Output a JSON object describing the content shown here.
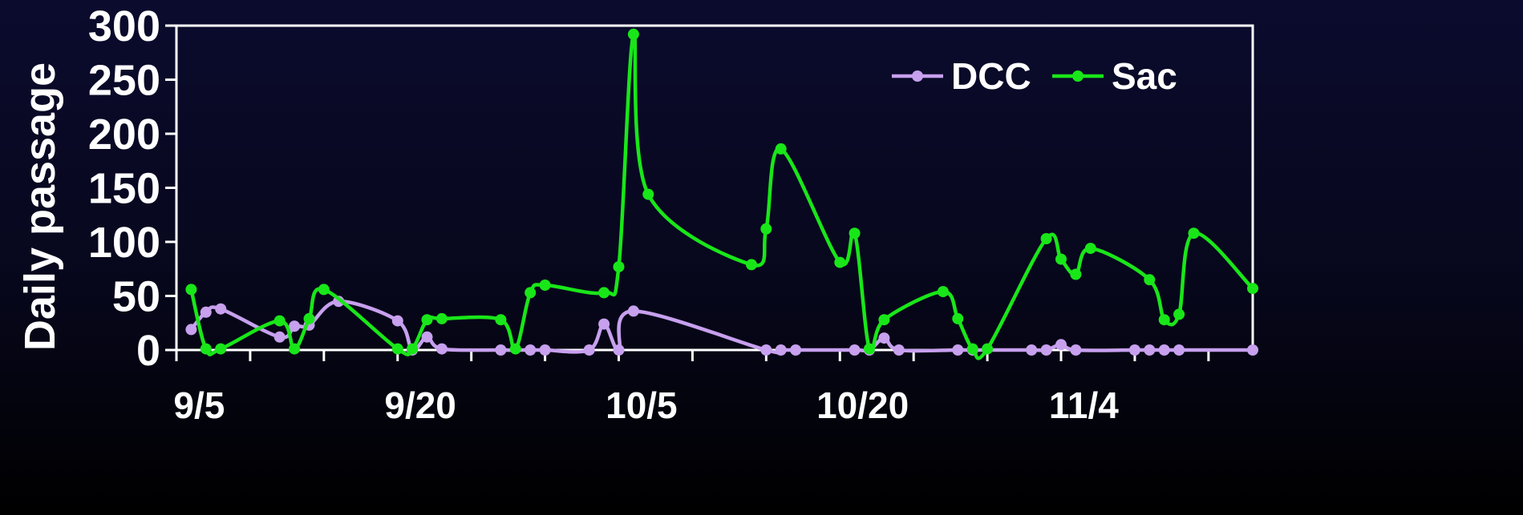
{
  "chart_data": {
    "type": "line",
    "title": "",
    "xlabel": "",
    "ylabel": "Daily passage",
    "ylim": [
      0,
      300
    ],
    "yticks": [
      0,
      50,
      100,
      150,
      200,
      250,
      300
    ],
    "xlim": [
      "9/4",
      "11/16"
    ],
    "xticks": [
      "9/5",
      "9/20",
      "10/5",
      "10/20",
      "11/4"
    ],
    "legend_position": "top-center",
    "grid": false,
    "colors": {
      "background": "#07071c",
      "axis": "#ffffff",
      "DCC": "#c7a0ee",
      "Sac": "#19e619"
    },
    "series": [
      {
        "name": "DCC",
        "points": [
          [
            "9/5",
            19
          ],
          [
            "9/6",
            35
          ],
          [
            "9/7",
            38
          ],
          [
            "9/11",
            12
          ],
          [
            "9/12",
            22
          ],
          [
            "9/13",
            23
          ],
          [
            "9/15",
            45
          ],
          [
            "9/19",
            27
          ],
          [
            "9/20",
            0
          ],
          [
            "9/21",
            12
          ],
          [
            "9/22",
            1
          ],
          [
            "9/26",
            0
          ],
          [
            "9/28",
            0
          ],
          [
            "9/29",
            0
          ],
          [
            "10/2",
            0
          ],
          [
            "10/3",
            24
          ],
          [
            "10/4",
            0
          ],
          [
            "10/5",
            36
          ],
          [
            "10/14",
            0
          ],
          [
            "10/15",
            0
          ],
          [
            "10/16",
            0
          ],
          [
            "10/20",
            0
          ],
          [
            "10/21",
            0
          ],
          [
            "10/22",
            11
          ],
          [
            "10/23",
            0
          ],
          [
            "10/27",
            0
          ],
          [
            "10/28",
            0
          ],
          [
            "11/1",
            0
          ],
          [
            "11/2",
            0
          ],
          [
            "11/3",
            5
          ],
          [
            "11/4",
            0
          ],
          [
            "11/8",
            0
          ],
          [
            "11/9",
            0
          ],
          [
            "11/10",
            0
          ],
          [
            "11/11",
            0
          ],
          [
            "11/16",
            0
          ]
        ]
      },
      {
        "name": "Sac",
        "points": [
          [
            "9/5",
            56
          ],
          [
            "9/6",
            1
          ],
          [
            "9/7",
            1
          ],
          [
            "9/11",
            27
          ],
          [
            "9/12",
            1
          ],
          [
            "9/13",
            29
          ],
          [
            "9/14",
            56
          ],
          [
            "9/19",
            1
          ],
          [
            "9/20",
            1
          ],
          [
            "9/21",
            28
          ],
          [
            "9/22",
            29
          ],
          [
            "9/26",
            28
          ],
          [
            "9/27",
            1
          ],
          [
            "9/28",
            53
          ],
          [
            "9/29",
            60
          ],
          [
            "10/3",
            53
          ],
          [
            "10/4",
            77
          ],
          [
            "10/5",
            292
          ],
          [
            "10/6",
            144
          ],
          [
            "10/13",
            79
          ],
          [
            "10/14",
            112
          ],
          [
            "10/15",
            186
          ],
          [
            "10/19",
            81
          ],
          [
            "10/20",
            108
          ],
          [
            "10/21",
            1
          ],
          [
            "10/22",
            28
          ],
          [
            "10/26",
            54
          ],
          [
            "10/27",
            29
          ],
          [
            "10/28",
            1
          ],
          [
            "10/29",
            1
          ],
          [
            "11/2",
            103
          ],
          [
            "11/3",
            84
          ],
          [
            "11/4",
            70
          ],
          [
            "11/5",
            94
          ],
          [
            "11/9",
            65
          ],
          [
            "11/10",
            28
          ],
          [
            "11/11",
            33
          ],
          [
            "11/12",
            108
          ],
          [
            "11/16",
            57
          ]
        ]
      }
    ]
  }
}
